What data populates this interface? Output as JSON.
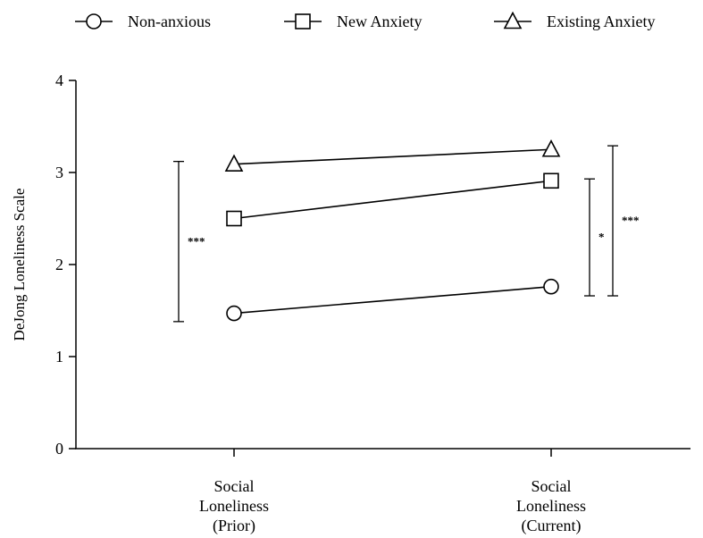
{
  "chart_data": {
    "type": "line",
    "title": "",
    "xlabel": "",
    "ylabel": "DeJong Loneliness Scale",
    "ylim": [
      0,
      4
    ],
    "yticks": [
      "0",
      "1",
      "2",
      "3",
      "4"
    ],
    "categories": [
      [
        "Social",
        "Loneliness",
        "(Prior)"
      ],
      [
        "Social",
        "Loneliness",
        "(Current)"
      ]
    ],
    "grid": false,
    "legend_position": "top",
    "series": [
      {
        "name": "Non-anxious",
        "marker": "circle",
        "values": [
          1.47,
          1.76
        ]
      },
      {
        "name": "New Anxiety",
        "marker": "square",
        "values": [
          2.5,
          2.91
        ]
      },
      {
        "name": "Existing Anxiety",
        "marker": "triangle",
        "values": [
          3.09,
          3.25
        ]
      }
    ],
    "significance_brackets": [
      {
        "category_index": 0,
        "from": 1.38,
        "to": 3.12,
        "label": "***"
      },
      {
        "category_index": 1,
        "from": 1.66,
        "to": 2.93,
        "label": "*"
      },
      {
        "category_index": 1,
        "from": 1.66,
        "to": 3.29,
        "label": "***"
      }
    ]
  }
}
